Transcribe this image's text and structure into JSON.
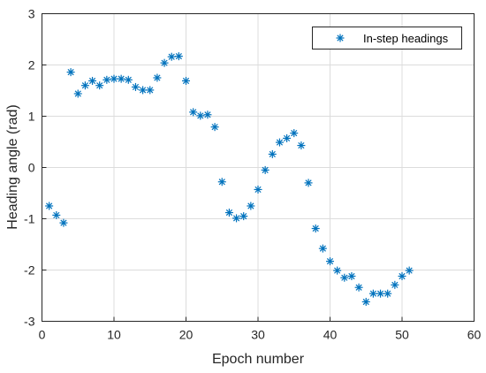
{
  "chart_data": {
    "type": "scatter",
    "xlabel": "Epoch number",
    "ylabel": "Heading angle (rad)",
    "xlim": [
      0,
      60
    ],
    "ylim": [
      -3,
      3
    ],
    "xticks": [
      "0",
      "10",
      "20",
      "30",
      "40",
      "50",
      "60"
    ],
    "yticks": [
      "-3",
      "-2",
      "-1",
      "0",
      "1",
      "2",
      "3"
    ],
    "grid": true,
    "legend_position": "top-right",
    "series": [
      {
        "name": "In-step headings",
        "color": "#0072BD",
        "marker": "asterisk",
        "x": [
          1,
          2,
          3,
          4,
          5,
          6,
          7,
          8,
          9,
          10,
          11,
          12,
          13,
          14,
          15,
          16,
          17,
          18,
          19,
          20,
          21,
          22,
          23,
          24,
          25,
          26,
          27,
          28,
          29,
          30,
          31,
          32,
          33,
          34,
          35,
          36,
          37,
          38,
          39,
          40,
          41,
          42,
          43,
          44,
          45,
          46,
          47,
          48,
          49,
          50,
          51
        ],
        "y": [
          -0.75,
          -0.93,
          -1.08,
          1.86,
          1.44,
          1.6,
          1.69,
          1.6,
          1.71,
          1.73,
          1.73,
          1.71,
          1.57,
          1.51,
          1.51,
          1.75,
          2.04,
          2.16,
          2.17,
          1.69,
          1.08,
          1.01,
          1.03,
          0.79,
          -0.28,
          -0.88,
          -0.99,
          -0.95,
          -0.75,
          -0.43,
          -0.05,
          0.26,
          0.49,
          0.57,
          0.67,
          0.43,
          -0.3,
          -1.19,
          -1.58,
          -1.83,
          -2.01,
          -2.15,
          -2.12,
          -2.34,
          -2.62,
          -2.46,
          -2.46,
          -2.46,
          -2.29,
          -2.12,
          -2.01
        ]
      }
    ]
  }
}
